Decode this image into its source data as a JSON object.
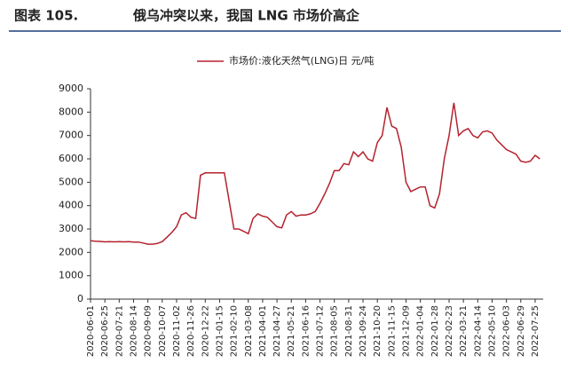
{
  "header": {
    "label": "图表 105.",
    "title": "俄乌冲突以来，我国 LNG 市场价高企"
  },
  "chart_data": {
    "type": "line",
    "categories": [
      "2020-06-01",
      null,
      null,
      "2020-06-25",
      null,
      null,
      "2020-07-21",
      null,
      null,
      "2020-08-14",
      null,
      null,
      "2020-09-09",
      null,
      null,
      "2020-10-07",
      null,
      null,
      "2020-11-02",
      null,
      null,
      "2020-11-26",
      null,
      null,
      "2020-12-22",
      null,
      null,
      "2021-01-15",
      null,
      null,
      "2021-02-10",
      null,
      null,
      "2021-03-08",
      null,
      null,
      "2021-04-01",
      null,
      null,
      "2021-04-27",
      null,
      null,
      "2021-05-21",
      null,
      null,
      "2021-06-16",
      null,
      null,
      "2021-07-12",
      null,
      null,
      "2021-08-05",
      null,
      null,
      "2021-08-31",
      null,
      null,
      "2021-09-24",
      null,
      null,
      "2021-10-20",
      null,
      null,
      "2021-11-15",
      null,
      null,
      "2021-12-09",
      null,
      null,
      "2022-01-04",
      null,
      null,
      "2022-01-28",
      null,
      null,
      "2022-02-23",
      null,
      null,
      "2022-03-21",
      null,
      null,
      "2022-04-14",
      null,
      null,
      "2022-05-10",
      null,
      null,
      "2022-06-03",
      null,
      null,
      "2022-06-29",
      null,
      null,
      "2022-07-25",
      null
    ],
    "series": [
      {
        "name": "市场价:液化天然气(LNG)日 元/吨",
        "color": "#b5222e",
        "values": [
          2500,
          2480,
          2470,
          2450,
          2460,
          2450,
          2460,
          2450,
          2460,
          2440,
          2440,
          2400,
          2350,
          2350,
          2380,
          2460,
          2650,
          2850,
          3100,
          3600,
          3700,
          3500,
          3450,
          5300,
          5400,
          5400,
          5400,
          5400,
          5400,
          4200,
          3000,
          3000,
          2900,
          2800,
          3450,
          3650,
          3550,
          3500,
          3300,
          3100,
          3050,
          3600,
          3750,
          3550,
          3600,
          3600,
          3650,
          3750,
          4100,
          4500,
          4950,
          5500,
          5500,
          5800,
          5750,
          6300,
          6100,
          6300,
          6000,
          5900,
          6700,
          7000,
          8200,
          7400,
          7300,
          6500,
          5000,
          4600,
          4700,
          4800,
          4800,
          4000,
          3900,
          4500,
          6000,
          7000,
          8400,
          7000,
          7200,
          7300,
          7000,
          6900,
          7150,
          7200,
          7100,
          6800,
          6600,
          6400,
          6300,
          6200,
          5900,
          5850,
          5900,
          6150,
          6000
        ]
      }
    ],
    "ylim": [
      0,
      9000
    ],
    "yticks": [
      0,
      1000,
      2000,
      3000,
      4000,
      5000,
      6000,
      7000,
      8000,
      9000
    ],
    "grid": false,
    "legend": "top"
  }
}
